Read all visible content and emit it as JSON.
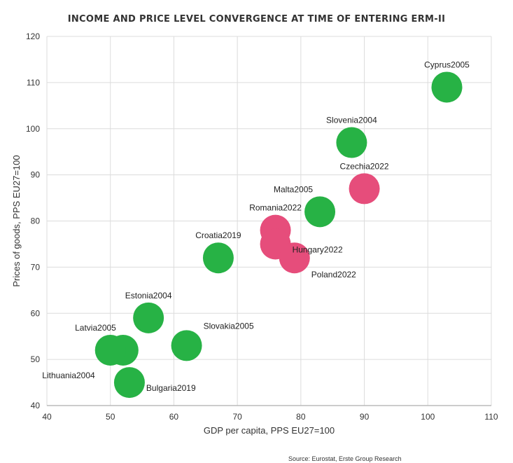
{
  "chart_data": {
    "type": "scatter",
    "title": "INCOME AND PRICE LEVEL CONVERGENCE AT TIME OF ENTERING ERM-II",
    "xlabel": "GDP per capita, PPS EU27=100",
    "ylabel": "Prices of goods, PPS EU27=100",
    "xlim": [
      40,
      110
    ],
    "ylim": [
      40,
      120
    ],
    "xticks": [
      40,
      50,
      60,
      70,
      80,
      90,
      100,
      110
    ],
    "yticks": [
      40,
      50,
      60,
      70,
      80,
      90,
      100,
      110,
      120
    ],
    "grid": true,
    "colors": {
      "joined": "#27b245",
      "candidate": "#e64d7b"
    },
    "points": [
      {
        "label": "Cyprus2005",
        "x": 103,
        "y": 109,
        "group": "joined",
        "label_pos": "above"
      },
      {
        "label": "Slovenia2004",
        "x": 88,
        "y": 97,
        "group": "joined",
        "label_pos": "above"
      },
      {
        "label": "Czechia2022",
        "x": 90,
        "y": 87,
        "group": "candidate",
        "label_pos": "above"
      },
      {
        "label": "Malta2005",
        "x": 83,
        "y": 82,
        "group": "joined",
        "label_pos": "above-left"
      },
      {
        "label": "Romania2022",
        "x": 76,
        "y": 78,
        "group": "candidate",
        "label_pos": "above"
      },
      {
        "label": "Hungary2022",
        "x": 76,
        "y": 75,
        "group": "candidate",
        "label_pos": "right"
      },
      {
        "label": "Poland2022",
        "x": 79,
        "y": 72,
        "group": "candidate",
        "label_pos": "below-right"
      },
      {
        "label": "Croatia2019",
        "x": 67,
        "y": 72,
        "group": "joined",
        "label_pos": "above"
      },
      {
        "label": "Estonia2004",
        "x": 56,
        "y": 59,
        "group": "joined",
        "label_pos": "above"
      },
      {
        "label": "Slovakia2005",
        "x": 62,
        "y": 53,
        "group": "joined",
        "label_pos": "above-right"
      },
      {
        "label": "Latvia2005",
        "x": 52,
        "y": 52,
        "group": "joined",
        "label_pos": "above-left"
      },
      {
        "label": "Lithuania2004",
        "x": 50,
        "y": 52,
        "group": "joined",
        "label_pos": "below-left"
      },
      {
        "label": "Bulgaria2019",
        "x": 53,
        "y": 45,
        "group": "joined",
        "label_pos": "right"
      }
    ]
  },
  "source": "Source: Eurostat, Erste Group Research"
}
